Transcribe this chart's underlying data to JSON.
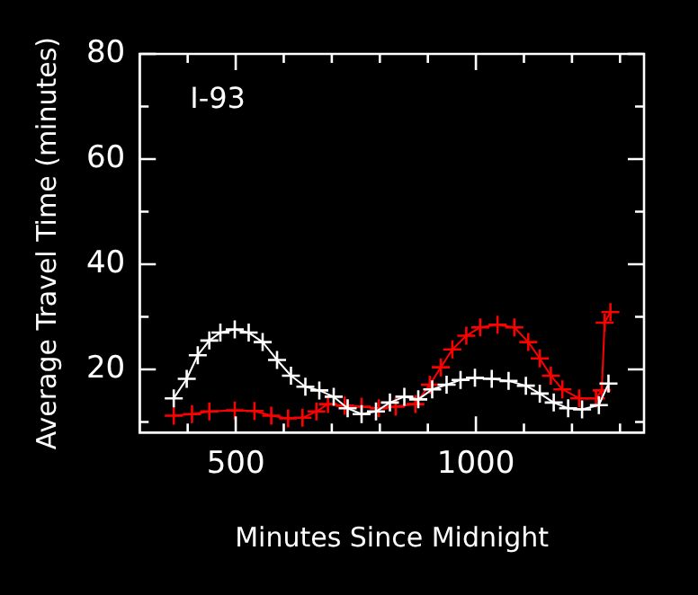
{
  "chart_data": {
    "type": "line",
    "xlabel": "Minutes Since Midnight",
    "ylabel": "Average Travel Time (minutes)",
    "annotations": [
      "I-93"
    ],
    "xlim": [
      300,
      1350
    ],
    "xticks": [
      {
        "value": 400,
        "label": null
      },
      500,
      {
        "value": 600,
        "label": null
      },
      {
        "value": 700,
        "label": null
      },
      {
        "value": 800,
        "label": null
      },
      {
        "value": 900,
        "label": null
      },
      1000,
      {
        "value": 1100,
        "label": null
      },
      {
        "value": 1200,
        "label": null
      },
      {
        "value": 1300,
        "label": null
      }
    ],
    "ylim": [
      8,
      80
    ],
    "yticks": [
      {
        "value": 10,
        "label": null
      },
      20,
      {
        "value": 30,
        "label": null
      },
      40,
      {
        "value": 50,
        "label": null
      },
      60,
      {
        "value": 70,
        "label": null
      },
      80
    ],
    "grid": false,
    "legend": false,
    "marker": "cross",
    "line_style": "solid",
    "series": [
      {
        "color": "#ffffff",
        "x": [
          371,
          398,
          421,
          445,
          468,
          498,
          527,
          556,
          586,
          615,
          645,
          674,
          704,
          733,
          762,
          792,
          821,
          851,
          880,
          909,
          939,
          968,
          998,
          1033,
          1068,
          1104,
          1133,
          1162,
          1192,
          1221,
          1256,
          1276
        ],
        "values": [
          14.5,
          18.2,
          22.7,
          25.5,
          27.0,
          27.6,
          27.0,
          25.2,
          21.8,
          18.8,
          16.7,
          16.0,
          14.8,
          12.6,
          11.5,
          12.0,
          13.7,
          14.8,
          14.3,
          16.2,
          17.1,
          18.0,
          18.4,
          18.2,
          17.8,
          16.9,
          15.4,
          13.7,
          12.6,
          12.4,
          13.2,
          17.3
        ]
      },
      {
        "color": "#ff0000",
        "x": [
          371,
          409,
          445,
          498,
          539,
          574,
          609,
          639,
          668,
          692,
          727,
          762,
          798,
          833,
          874,
          904,
          927,
          951,
          980,
          1009,
          1045,
          1080,
          1109,
          1133,
          1156,
          1180,
          1215,
          1250,
          1262,
          1268,
          1280
        ],
        "values": [
          11.2,
          11.5,
          12.0,
          12.2,
          12.1,
          11.2,
          10.7,
          10.8,
          12.0,
          13.4,
          13.1,
          12.9,
          12.6,
          12.9,
          13.4,
          17.1,
          20.4,
          23.8,
          26.4,
          28.0,
          28.5,
          28.0,
          25.2,
          22.1,
          18.8,
          16.2,
          14.5,
          14.5,
          16.0,
          28.9,
          30.9
        ]
      }
    ]
  }
}
